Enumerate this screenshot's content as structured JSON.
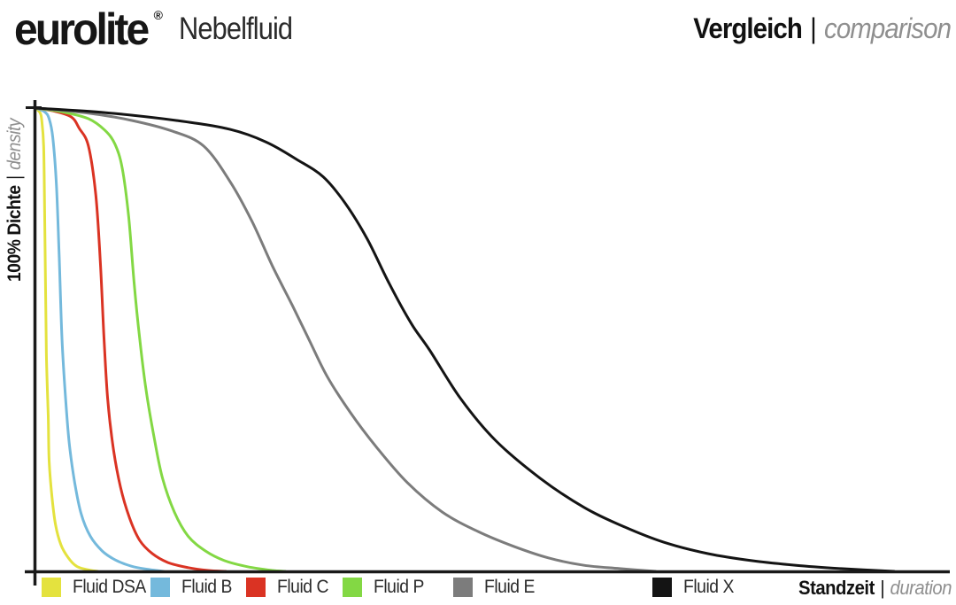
{
  "header": {
    "logo": "eurolite",
    "logo_reg": "®",
    "product": "Nebelfluid",
    "title_de": "Vergleich",
    "title_sep": "|",
    "title_en": "comparison"
  },
  "axes": {
    "y_label_de": "100% Dichte",
    "y_label_sep": "|",
    "y_label_en": "density",
    "x_label_de": "Standzeit",
    "x_label_sep": "|",
    "x_label_en": "duration"
  },
  "colors": {
    "axis": "#1a1a1a",
    "heading_text": "#111111",
    "muted_text": "#8f8f8f",
    "legend_text": "#2b2b2b"
  },
  "chart_data": {
    "type": "line",
    "title": "Vergleich | comparison",
    "xlabel": "Standzeit | duration",
    "ylabel": "100% Dichte | density",
    "grid": false,
    "legend_position": "bottom",
    "x_axis": {
      "min": 0,
      "max": 100,
      "tick_labels": [],
      "note": "relative duration, no numeric scale shown"
    },
    "y_axis": {
      "min": 0,
      "max": 100,
      "tick_labels": [
        "100%"
      ],
      "unit": "% density"
    },
    "series": [
      {
        "name": "Fluid DSA",
        "color": "#e4e23e",
        "points": [
          [
            0,
            100
          ],
          [
            0.5,
            99
          ],
          [
            0.7,
            97.3
          ],
          [
            0.9,
            91.8
          ],
          [
            1,
            79.4
          ],
          [
            1.1,
            62.1
          ],
          [
            1.2,
            46.8
          ],
          [
            1.4,
            33.5
          ],
          [
            1.5,
            23.9
          ],
          [
            1.8,
            16.3
          ],
          [
            2.2,
            10.1
          ],
          [
            2.8,
            5.7
          ],
          [
            3.6,
            2.9
          ],
          [
            4.5,
            1.1
          ],
          [
            5.6,
            0.4
          ],
          [
            6.8,
            0
          ]
        ]
      },
      {
        "name": "Fluid B",
        "color": "#74b9dc",
        "points": [
          [
            0,
            100
          ],
          [
            1,
            99.2
          ],
          [
            1.5,
            97.7
          ],
          [
            1.9,
            93.7
          ],
          [
            2.3,
            83.2
          ],
          [
            2.6,
            67.9
          ],
          [
            2.9,
            50.3
          ],
          [
            3.3,
            37.3
          ],
          [
            3.7,
            27.7
          ],
          [
            4.3,
            19.1
          ],
          [
            5,
            12.4
          ],
          [
            6,
            7.6
          ],
          [
            7.3,
            4.4
          ],
          [
            8.7,
            2.5
          ],
          [
            10.5,
            1.1
          ],
          [
            12.4,
            0.4
          ],
          [
            14,
            0
          ]
        ]
      },
      {
        "name": "Fluid C",
        "color": "#da3323",
        "points": [
          [
            0,
            100
          ],
          [
            1.9,
            99.4
          ],
          [
            3.9,
            98.1
          ],
          [
            4.8,
            95.6
          ],
          [
            5.8,
            91.8
          ],
          [
            6.6,
            81.3
          ],
          [
            7.1,
            66.9
          ],
          [
            7.5,
            50.3
          ],
          [
            7.9,
            37.3
          ],
          [
            8.5,
            26.8
          ],
          [
            9.3,
            18.2
          ],
          [
            10.3,
            11.5
          ],
          [
            11.4,
            6.7
          ],
          [
            12.8,
            3.8
          ],
          [
            14.5,
            1.9
          ],
          [
            16.7,
            0.8
          ],
          [
            18.9,
            0.2
          ],
          [
            20.8,
            0
          ]
        ]
      },
      {
        "name": "Fluid P",
        "color": "#83d844",
        "points": [
          [
            0,
            100
          ],
          [
            2.9,
            99.2
          ],
          [
            5.8,
            97.7
          ],
          [
            7.6,
            95.2
          ],
          [
            8.7,
            92.2
          ],
          [
            9.5,
            87
          ],
          [
            10.2,
            76.5
          ],
          [
            10.8,
            62.1
          ],
          [
            11.4,
            50.3
          ],
          [
            12.1,
            39.2
          ],
          [
            13,
            28.7
          ],
          [
            13.9,
            20.1
          ],
          [
            15.2,
            12.8
          ],
          [
            16.7,
            7.6
          ],
          [
            18.6,
            4.4
          ],
          [
            20.7,
            2.3
          ],
          [
            23.2,
            1
          ],
          [
            25.9,
            0.2
          ],
          [
            27.3,
            0
          ]
        ]
      },
      {
        "name": "Fluid E",
        "color": "#7c7c7c",
        "points": [
          [
            0,
            100
          ],
          [
            5.8,
            98.9
          ],
          [
            10.6,
            97.3
          ],
          [
            15,
            95
          ],
          [
            18.4,
            91.8
          ],
          [
            21.3,
            84.1
          ],
          [
            23.7,
            75.5
          ],
          [
            25.9,
            66
          ],
          [
            28.1,
            57.4
          ],
          [
            30,
            49.7
          ],
          [
            31.9,
            42.1
          ],
          [
            34.4,
            34.4
          ],
          [
            37.3,
            26.8
          ],
          [
            40.7,
            19.1
          ],
          [
            44.5,
            12.8
          ],
          [
            48.4,
            8.6
          ],
          [
            52.3,
            5.4
          ],
          [
            56.1,
            2.9
          ],
          [
            60,
            1.3
          ],
          [
            63.9,
            0.6
          ],
          [
            67.8,
            0
          ]
        ]
      },
      {
        "name": "Fluid X",
        "color": "#141414",
        "points": [
          [
            0,
            100
          ],
          [
            7.7,
            99
          ],
          [
            15.5,
            97.3
          ],
          [
            21.3,
            95.4
          ],
          [
            25.2,
            92.7
          ],
          [
            28.6,
            88.9
          ],
          [
            31.5,
            85.1
          ],
          [
            33.9,
            79.4
          ],
          [
            36.3,
            71.7
          ],
          [
            38.7,
            62.1
          ],
          [
            41.1,
            53.5
          ],
          [
            43.1,
            47.8
          ],
          [
            46.5,
            37.3
          ],
          [
            50.3,
            28.3
          ],
          [
            55.2,
            20.1
          ],
          [
            60,
            13.8
          ],
          [
            64.4,
            9.6
          ],
          [
            68.7,
            6.3
          ],
          [
            73.6,
            3.8
          ],
          [
            78.4,
            2.3
          ],
          [
            83.2,
            1.3
          ],
          [
            88.1,
            0.6
          ],
          [
            93.9,
            0
          ]
        ]
      }
    ]
  }
}
